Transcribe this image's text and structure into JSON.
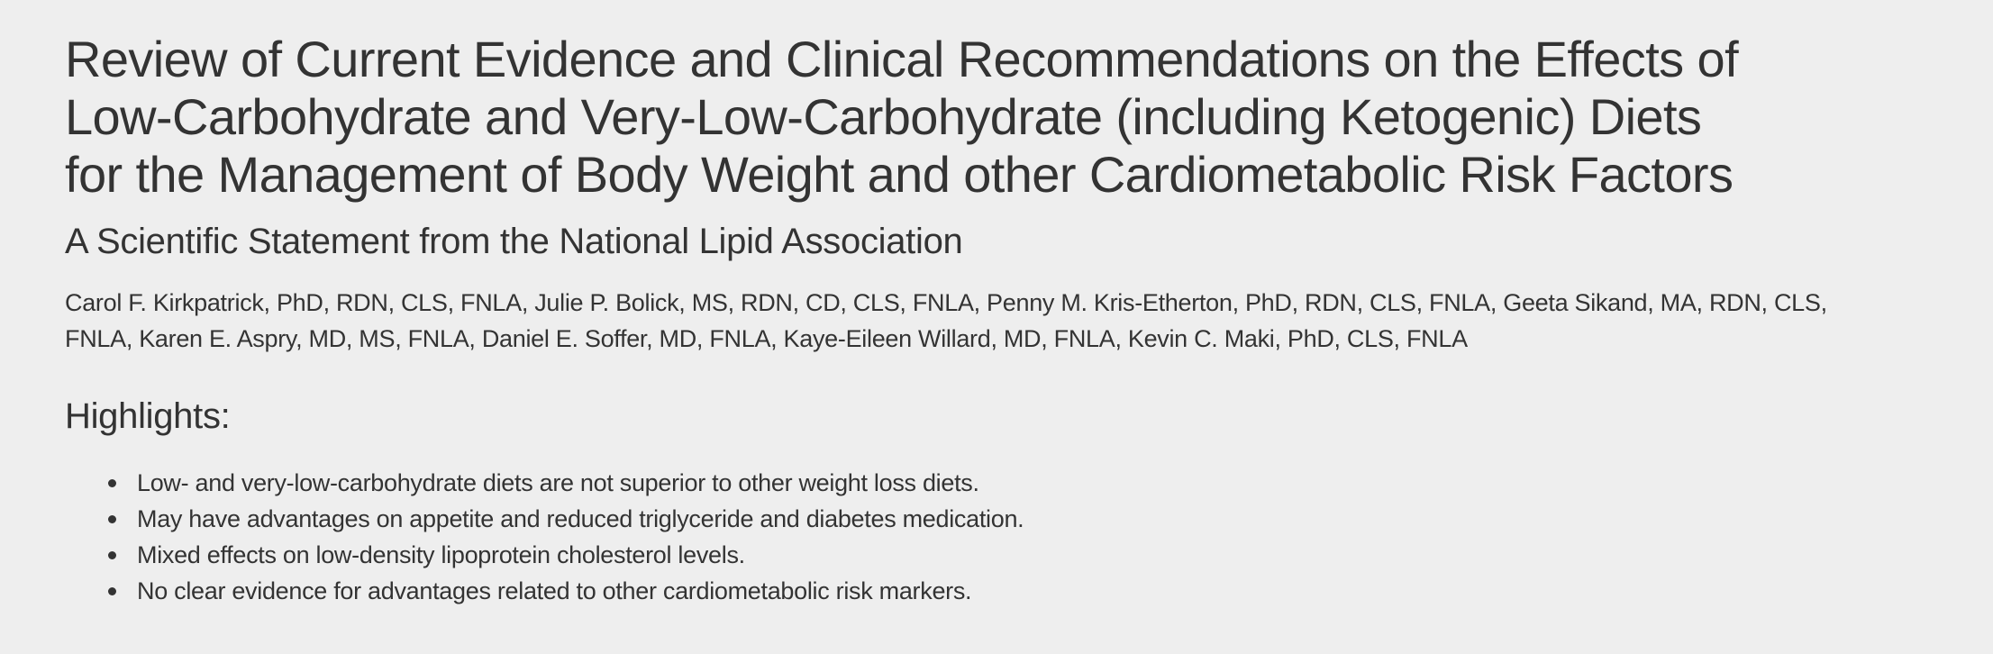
{
  "title": {
    "lines": [
      "Review of Current Evidence and Clinical Recommendations on the Effects of",
      "Low-Carbohydrate and Very-Low-Carbohydrate (including Ketogenic) Diets",
      "for the Management of Body Weight and other Cardiometabolic Risk Factors"
    ]
  },
  "subtitle": "A Scientific Statement from the National Lipid Association",
  "authors": {
    "lines": [
      "Carol F. Kirkpatrick, PhD, RDN, CLS, FNLA, Julie P. Bolick, MS, RDN, CD, CLS, FNLA, Penny M. Kris-Etherton, PhD, RDN, CLS, FNLA, Geeta Sikand, MA, RDN, CLS,",
      "FNLA, Karen E. Aspry, MD, MS, FNLA, Daniel E. Soffer, MD, FNLA, Kaye-Eileen Willard, MD, FNLA, Kevin C. Maki, PhD, CLS, FNLA"
    ]
  },
  "highlights": {
    "heading": "Highlights:",
    "items": [
      "Low- and very-low-carbohydrate diets are not superior to other weight loss diets.",
      "May have advantages on appetite and reduced triglyceride and diabetes medication.",
      "Mixed effects on low-density lipoprotein cholesterol levels.",
      "No clear evidence for advantages related to other cardiometabolic risk markers."
    ]
  }
}
